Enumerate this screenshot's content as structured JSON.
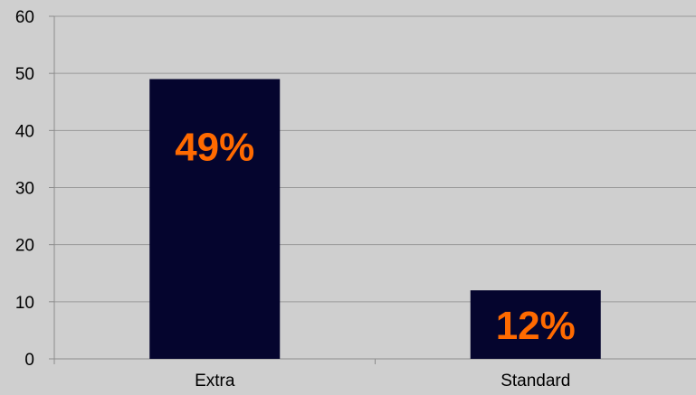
{
  "chart_data": {
    "type": "bar",
    "title": "",
    "xlabel": "",
    "ylabel": "",
    "categories": [
      "Extra",
      "Standard"
    ],
    "values": [
      49,
      12
    ],
    "data_labels": [
      "49%",
      "12%"
    ],
    "ylim": [
      0,
      60
    ],
    "y_ticks": [
      "0",
      "10",
      "20",
      "30",
      "40",
      "50",
      "60"
    ],
    "grid": true,
    "legend": "none",
    "colors": {
      "background": "#cfcfcf",
      "bar": "#05052e",
      "data_label": "#ff6a00",
      "gridline": "#9a9a9a"
    }
  }
}
